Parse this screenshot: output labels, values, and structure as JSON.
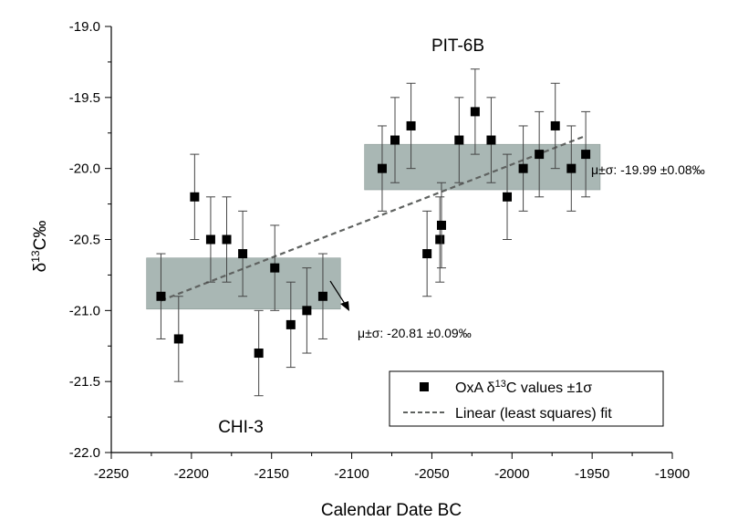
{
  "chart_data": {
    "type": "scatter",
    "title": "",
    "xlabel": "Calendar Date BC",
    "ylabel_parts": [
      "δ",
      "13",
      "C‰"
    ],
    "xlim": [
      -2250,
      -1900
    ],
    "ylim": [
      -22.0,
      -19.0
    ],
    "x_ticks": [
      "-2250",
      "-2200",
      "-2150",
      "-2100",
      "-2050",
      "-2000",
      "-1950",
      "-1900"
    ],
    "y_ticks": [
      "-19.0",
      "-19.5",
      "-20.0",
      "-20.5",
      "-21.0",
      "-21.5",
      "-22.0"
    ],
    "grid": false,
    "series": [
      {
        "name_parts": [
          "OxA δ",
          "13",
          "C values ±1σ"
        ],
        "marker": "square",
        "error": 0.3,
        "points": [
          {
            "x": -2219,
            "y": -20.9
          },
          {
            "x": -2208,
            "y": -21.2
          },
          {
            "x": -2198,
            "y": -20.2
          },
          {
            "x": -2188,
            "y": -20.5
          },
          {
            "x": -2178,
            "y": -20.5
          },
          {
            "x": -2168,
            "y": -20.6
          },
          {
            "x": -2158,
            "y": -21.3
          },
          {
            "x": -2148,
            "y": -20.7
          },
          {
            "x": -2138,
            "y": -21.1
          },
          {
            "x": -2128,
            "y": -21.0
          },
          {
            "x": -2118,
            "y": -20.9
          },
          {
            "x": -2081,
            "y": -20.0
          },
          {
            "x": -2073,
            "y": -19.8
          },
          {
            "x": -2063,
            "y": -19.7
          },
          {
            "x": -2053,
            "y": -20.6
          },
          {
            "x": -2045,
            "y": -20.5
          },
          {
            "x": -2044,
            "y": -20.4
          },
          {
            "x": -2033,
            "y": -19.8
          },
          {
            "x": -2023,
            "y": -19.6
          },
          {
            "x": -2013,
            "y": -19.8
          },
          {
            "x": -2003,
            "y": -20.2
          },
          {
            "x": -1993,
            "y": -20.0
          },
          {
            "x": -1983,
            "y": -19.9
          },
          {
            "x": -1973,
            "y": -19.7
          },
          {
            "x": -1963,
            "y": -20.0
          },
          {
            "x": -1954,
            "y": -19.9
          }
        ]
      },
      {
        "name": "Linear (least squares) fit",
        "style": "dashed",
        "points": [
          {
            "x": -2219,
            "y": -20.93
          },
          {
            "x": -1954,
            "y": -19.77
          }
        ]
      }
    ],
    "bands": [
      {
        "group": "CHI-3",
        "x_start": -2228,
        "x_end": -2107,
        "mean": -20.81,
        "sd": 0.09
      },
      {
        "group": "PIT-6B",
        "x_start": -2092,
        "x_end": -1945,
        "mean": -19.99,
        "sd": 0.08
      }
    ],
    "annotations": {
      "chi_label": "CHI-3",
      "pit_label": "PIT-6B",
      "chi_stat": "μ±σ: -20.81 ±0.09‰",
      "pit_stat": "μ±σ: -19.99 ±0.08‰"
    },
    "legend_position": "bottom-right",
    "colors": {
      "band": "#a9b7b4",
      "fit": "#5f6260",
      "marker": "#000000"
    }
  }
}
